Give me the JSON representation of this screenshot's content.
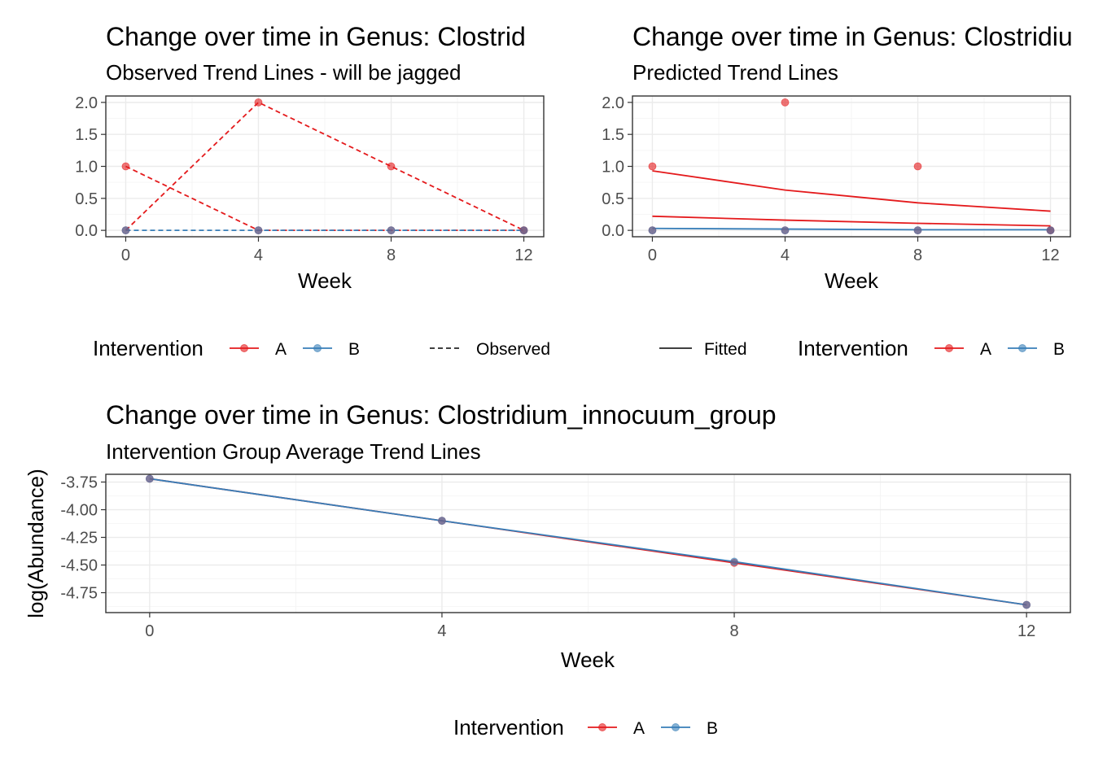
{
  "colors": {
    "A": "#e41a1c",
    "B": "#377eb8"
  },
  "chart_data": [
    {
      "id": "observed",
      "type": "line",
      "title": "Change over time in Genus: Clostrid",
      "subtitle": "Observed Trend Lines - will be jagged",
      "xlabel": "Week",
      "ylabel": "",
      "xlim": [
        -0.6,
        12.6
      ],
      "ylim": [
        -0.1,
        2.1
      ],
      "xticks": [
        0,
        4,
        8,
        12
      ],
      "xtick_labels": [
        "0",
        "4",
        "8",
        "12"
      ],
      "yticks": [
        0,
        0.5,
        1,
        1.5,
        2
      ],
      "ytick_labels": [
        "0.0",
        "0.5",
        "1.0",
        "1.5",
        "2.0"
      ],
      "grid": true,
      "series": [
        {
          "group": "A",
          "style": "dashed",
          "x": [
            0,
            4,
            8,
            12
          ],
          "y": [
            1,
            0,
            0,
            0
          ]
        },
        {
          "group": "A",
          "style": "dashed",
          "x": [
            0,
            4,
            8,
            12
          ],
          "y": [
            0,
            2,
            1,
            0
          ]
        },
        {
          "group": "B",
          "style": "dashed",
          "x": [
            0,
            4,
            8,
            12
          ],
          "y": [
            0,
            0,
            0,
            0
          ]
        }
      ],
      "points": [
        {
          "group": "A",
          "x": [
            0,
            4,
            8,
            12
          ],
          "y": [
            1,
            0,
            0,
            0
          ]
        },
        {
          "group": "A",
          "x": [
            0,
            4,
            8,
            12
          ],
          "y": [
            0,
            2,
            1,
            0
          ]
        },
        {
          "group": "B",
          "x": [
            0,
            4,
            8,
            12
          ],
          "y": [
            0,
            0,
            0,
            0
          ]
        }
      ],
      "legend": {
        "title": "Intervention",
        "entries": [
          "A",
          "B"
        ],
        "linetype_label": "Observed",
        "position": "bottom"
      }
    },
    {
      "id": "predicted",
      "type": "line",
      "title": "Change over time in Genus: Clostridiu",
      "subtitle": "Predicted Trend Lines",
      "xlabel": "Week",
      "ylabel": "",
      "xlim": [
        -0.6,
        12.6
      ],
      "ylim": [
        -0.1,
        2.1
      ],
      "xticks": [
        0,
        4,
        8,
        12
      ],
      "xtick_labels": [
        "0",
        "4",
        "8",
        "12"
      ],
      "yticks": [
        0,
        0.5,
        1,
        1.5,
        2
      ],
      "ytick_labels": [
        "0.0",
        "0.5",
        "1.0",
        "1.5",
        "2.0"
      ],
      "grid": true,
      "series": [
        {
          "group": "A",
          "style": "solid",
          "x": [
            0,
            4,
            8,
            12
          ],
          "y": [
            0.93,
            0.63,
            0.43,
            0.3
          ]
        },
        {
          "group": "A",
          "style": "solid",
          "x": [
            0,
            4,
            8,
            12
          ],
          "y": [
            0.22,
            0.16,
            0.11,
            0.07
          ]
        },
        {
          "group": "B",
          "style": "solid",
          "x": [
            0,
            4,
            8,
            12
          ],
          "y": [
            0.03,
            0.02,
            0.01,
            0.01
          ]
        }
      ],
      "points": [
        {
          "group": "A",
          "x": [
            0,
            4,
            8,
            12
          ],
          "y": [
            1,
            0,
            0,
            0
          ]
        },
        {
          "group": "A",
          "x": [
            0,
            4,
            8,
            12
          ],
          "y": [
            0,
            2,
            1,
            0
          ]
        },
        {
          "group": "B",
          "x": [
            0,
            4,
            8,
            12
          ],
          "y": [
            0,
            0,
            0,
            0
          ]
        }
      ],
      "legend": {
        "title": "Intervention",
        "entries": [
          "A",
          "B"
        ],
        "linetype_label": "Fitted",
        "position": "bottom"
      }
    },
    {
      "id": "average",
      "type": "line",
      "title": "Change over time in Genus: Clostridium_innocuum_group",
      "subtitle": "Intervention Group Average Trend Lines",
      "xlabel": "Week",
      "ylabel": "log(Abundance)",
      "xlim": [
        -0.6,
        12.6
      ],
      "ylim": [
        -4.93,
        -3.68
      ],
      "xticks": [
        0,
        4,
        8,
        12
      ],
      "xtick_labels": [
        "0",
        "4",
        "8",
        "12"
      ],
      "yticks": [
        -3.75,
        -4,
        -4.25,
        -4.5,
        -4.75
      ],
      "ytick_labels": [
        "-3.75",
        "-4.00",
        "-4.25",
        "-4.50",
        "-4.75"
      ],
      "grid": true,
      "series": [
        {
          "group": "A",
          "style": "solid",
          "x": [
            0,
            4,
            8,
            12
          ],
          "y": [
            -3.72,
            -4.1,
            -4.48,
            -4.86
          ]
        },
        {
          "group": "B",
          "style": "solid",
          "x": [
            0,
            4,
            8,
            12
          ],
          "y": [
            -3.72,
            -4.1,
            -4.47,
            -4.86
          ]
        }
      ],
      "points": [
        {
          "group": "A",
          "x": [
            0,
            4,
            8,
            12
          ],
          "y": [
            -3.72,
            -4.1,
            -4.48,
            -4.86
          ]
        },
        {
          "group": "B",
          "x": [
            0,
            4,
            8,
            12
          ],
          "y": [
            -3.72,
            -4.1,
            -4.47,
            -4.86
          ]
        }
      ],
      "legend": {
        "title": "Intervention",
        "entries": [
          "A",
          "B"
        ],
        "linetype_label": "",
        "position": "bottom"
      }
    }
  ]
}
